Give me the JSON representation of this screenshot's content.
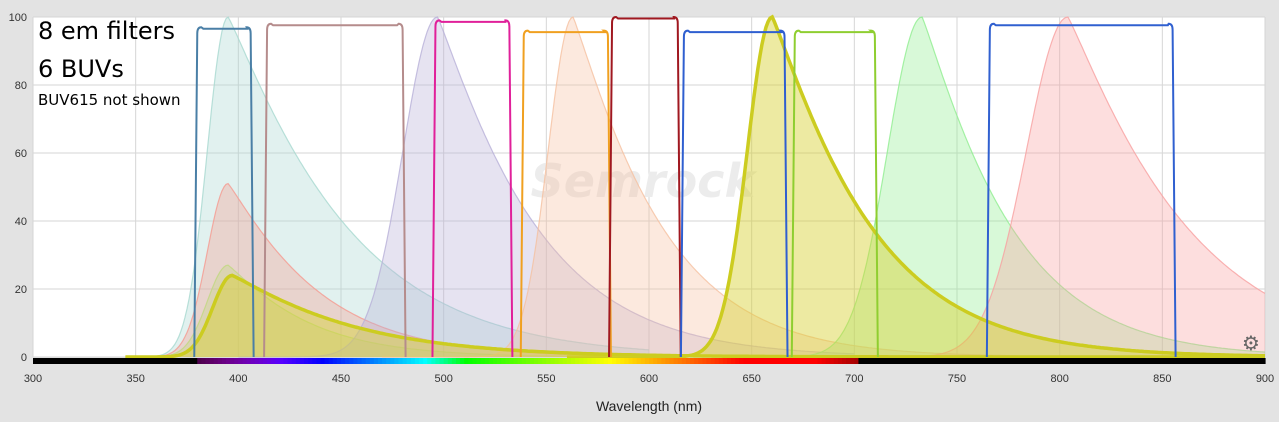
{
  "annotations": {
    "line1": "8 em filters",
    "line2": "6 BUVs",
    "line3": "BUV615 not shown"
  },
  "watermark": "Semrock",
  "settings_icon": "gear-icon",
  "chart_data": {
    "type": "area",
    "xlabel": "Wavelength (nm)",
    "ylabel": "",
    "xlim": [
      300,
      900
    ],
    "ylim": [
      0,
      100
    ],
    "xticks": [
      300,
      350,
      400,
      450,
      500,
      550,
      600,
      650,
      700,
      750,
      800,
      850,
      900
    ],
    "yticks": [
      0,
      20,
      40,
      60,
      80,
      100
    ],
    "grid": true,
    "filters": [
      {
        "color": "#4a7fa6",
        "edges": [
          380,
          406
        ],
        "transmission": 97
      },
      {
        "color": "#b58c8c",
        "edges": [
          414,
          480
        ],
        "transmission": 98
      },
      {
        "color": "#e0209a",
        "edges": [
          496,
          532
        ],
        "transmission": 99
      },
      {
        "color": "#f0a020",
        "edges": [
          539,
          580
        ],
        "transmission": 96
      },
      {
        "color": "#a01820",
        "edges": [
          582,
          614
        ],
        "transmission": 100
      },
      {
        "color": "#2f5fd0",
        "edges": [
          617,
          666
        ],
        "transmission": 96
      },
      {
        "color": "#8fce30",
        "edges": [
          671,
          710
        ],
        "transmission": 96
      },
      {
        "color": "#3060d0",
        "edges": [
          766,
          855
        ],
        "transmission": 98
      }
    ],
    "spectra": [
      {
        "color": "#a8d8d0",
        "peak": 395,
        "height": 100,
        "left": 15,
        "right": 60,
        "start": 345,
        "end": 600
      },
      {
        "color": "#f59a90",
        "peak": 395,
        "height": 51,
        "left": 15,
        "right": 45,
        "start": 345,
        "end": 600
      },
      {
        "color": "#c0d880",
        "peak": 395,
        "height": 27,
        "left": 15,
        "right": 40,
        "start": 345,
        "end": 600
      },
      {
        "color": "#b8b0d8",
        "peak": 497,
        "height": 100,
        "left": 25,
        "right": 50,
        "start": 400,
        "end": 700
      },
      {
        "color": "#f5c0a0",
        "peak": 563,
        "height": 100,
        "left": 18,
        "right": 45,
        "start": 470,
        "end": 780
      },
      {
        "color": "#90ee90",
        "peak": 733,
        "height": 100,
        "left": 25,
        "right": 45,
        "start": 620,
        "end": 900
      },
      {
        "color": "#f8a0a0",
        "peak": 804,
        "height": 100,
        "left": 30,
        "right": 60,
        "start": 680,
        "end": 900
      },
      {
        "color": "#d8d030",
        "peak": 660,
        "height": 100,
        "left": 18,
        "right": 50,
        "start": 560,
        "end": 900,
        "bold": true
      },
      {
        "color": "#d8d030",
        "peak": 397,
        "height": 24,
        "left": 14,
        "right": 60,
        "start": 345,
        "end": 900,
        "bold": true
      }
    ]
  }
}
